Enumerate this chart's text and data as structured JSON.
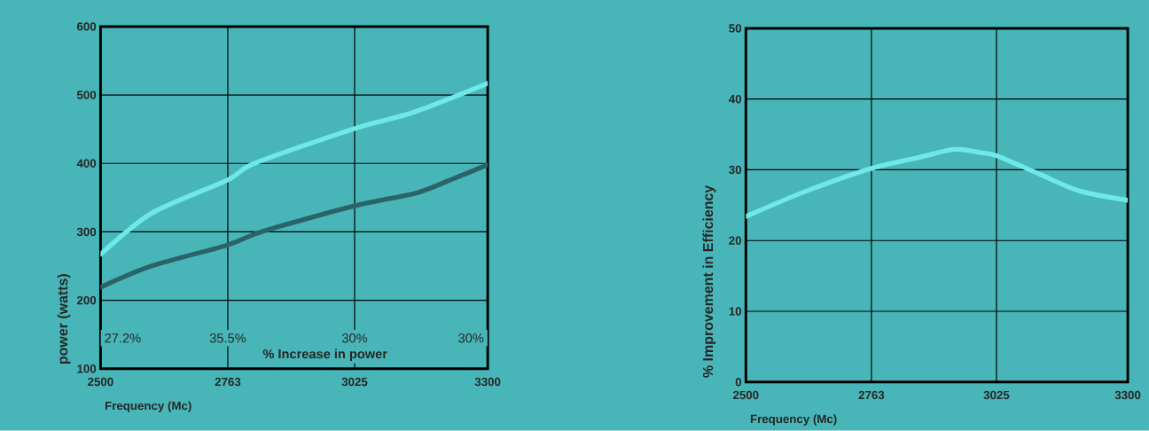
{
  "chart_data": [
    {
      "type": "line",
      "xlabel": "Frequency (Mc)",
      "ylabel": "power (watts)",
      "xlim": [
        2500,
        3300
      ],
      "xticks": [
        2500,
        2763,
        3025,
        3300
      ],
      "ylim": [
        100,
        600
      ],
      "yticks": [
        100,
        200,
        300,
        400,
        500,
        600
      ],
      "grid": true,
      "series": [
        {
          "color": "#6ee8ea",
          "x": [
            2500,
            2605,
            2763,
            2818,
            3025,
            3148,
            3300
          ],
          "values": [
            267,
            327,
            376,
            400,
            451,
            475,
            517
          ]
        },
        {
          "color": "#2a6468",
          "x": [
            2500,
            2605,
            2763,
            2836,
            3025,
            3148,
            3206,
            3300
          ],
          "values": [
            219,
            250,
            281,
            301,
            338,
            356,
            371,
            398
          ]
        }
      ],
      "annotations": [
        "27.2%",
        "35.5%",
        "30%",
        "30%",
        "% Increase in power"
      ]
    },
    {
      "type": "line",
      "xlabel": "Frequency (Mc)",
      "ylabel": "% Improvement in Efficiency",
      "xlim": [
        2500,
        3300
      ],
      "xticks": [
        2500,
        2763,
        3025,
        3300
      ],
      "ylim": [
        0,
        50
      ],
      "yticks": [
        0,
        10,
        20,
        30,
        40,
        50
      ],
      "grid": true,
      "series": [
        {
          "color": "#6ee8ea",
          "x": [
            2500,
            2627,
            2763,
            2866,
            2937,
            2994,
            3025,
            3118,
            3199,
            3300
          ],
          "values": [
            23.4,
            27.0,
            30.2,
            31.8,
            32.9,
            32.4,
            32.0,
            29.3,
            27.0,
            25.7
          ]
        }
      ]
    }
  ]
}
